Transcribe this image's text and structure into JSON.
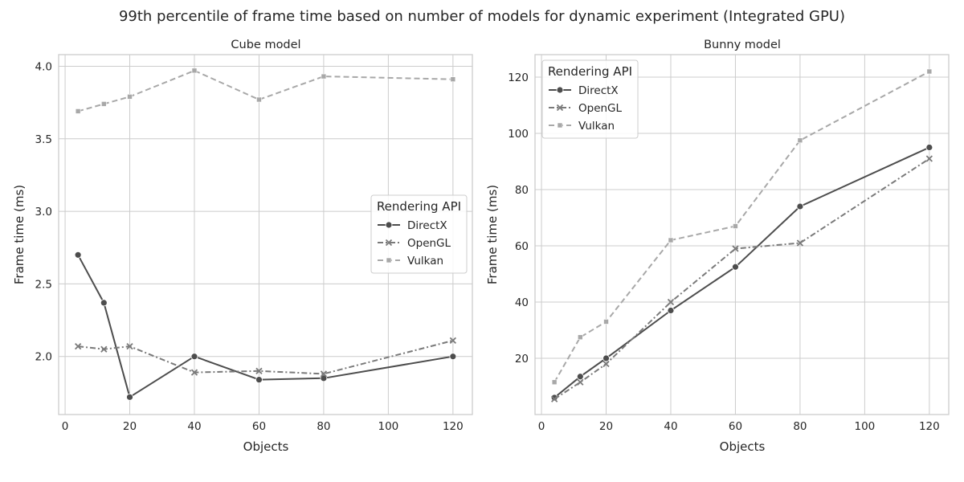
{
  "figure": {
    "suptitle": "99th percentile of frame time based on number of models for dynamic experiment (Integrated GPU)"
  },
  "colors": {
    "DirectX": "#4d4d4d",
    "OpenGL": "#7a7a7a",
    "Vulkan": "#a8a8a8",
    "grid": "#cccccc"
  },
  "chart_data": [
    {
      "type": "line",
      "title": "Cube model",
      "xlabel": "Objects",
      "ylabel": "Frame time (ms)",
      "xlim": [
        -2,
        126
      ],
      "ylim": [
        1.6,
        4.08
      ],
      "xticks": [
        0,
        20,
        40,
        60,
        80,
        100,
        120
      ],
      "xtick_labels": [
        "0",
        "20",
        "40",
        "60",
        "80",
        "100",
        "120"
      ],
      "yticks": [
        2.0,
        2.5,
        3.0,
        3.5,
        4.0
      ],
      "ytick_labels": [
        "2.0",
        "2.5",
        "3.0",
        "3.5",
        "4.0"
      ],
      "grid": true,
      "legend": {
        "title": "Rendering API",
        "placement": "center-right"
      },
      "series": [
        {
          "name": "DirectX",
          "marker": "circle",
          "dash": "solid",
          "x": [
            4,
            12,
            20,
            40,
            60,
            80,
            120
          ],
          "y": [
            2.7,
            2.37,
            1.72,
            2.0,
            1.84,
            1.85,
            2.0
          ]
        },
        {
          "name": "OpenGL",
          "marker": "x",
          "dash": "dashdot",
          "x": [
            4,
            12,
            20,
            40,
            60,
            80,
            120
          ],
          "y": [
            2.07,
            2.05,
            2.07,
            1.89,
            1.9,
            1.88,
            2.11
          ]
        },
        {
          "name": "Vulkan",
          "marker": "square",
          "dash": "dashed",
          "x": [
            4,
            12,
            20,
            40,
            60,
            80,
            120
          ],
          "y": [
            3.69,
            3.74,
            3.79,
            3.97,
            3.77,
            3.93,
            3.91
          ]
        }
      ]
    },
    {
      "type": "line",
      "title": "Bunny model",
      "xlabel": "Objects",
      "ylabel": "Frame time (ms)",
      "xlim": [
        -2,
        126
      ],
      "ylim": [
        0,
        128
      ],
      "xticks": [
        0,
        20,
        40,
        60,
        80,
        100,
        120
      ],
      "xtick_labels": [
        "0",
        "20",
        "40",
        "60",
        "80",
        "100",
        "120"
      ],
      "yticks": [
        20,
        40,
        60,
        80,
        100,
        120
      ],
      "ytick_labels": [
        "20",
        "40",
        "60",
        "80",
        "100",
        "120"
      ],
      "grid": true,
      "legend": {
        "title": "Rendering API",
        "placement": "top-left"
      },
      "series": [
        {
          "name": "DirectX",
          "marker": "circle",
          "dash": "solid",
          "x": [
            4,
            12,
            20,
            40,
            60,
            80,
            120
          ],
          "y": [
            6,
            13.5,
            20,
            37,
            52.5,
            74,
            95
          ]
        },
        {
          "name": "OpenGL",
          "marker": "x",
          "dash": "dashdot",
          "x": [
            4,
            12,
            20,
            40,
            60,
            80,
            120
          ],
          "y": [
            5.5,
            11.5,
            18,
            40,
            59,
            61,
            91
          ]
        },
        {
          "name": "Vulkan",
          "marker": "square",
          "dash": "dashed",
          "x": [
            4,
            12,
            20,
            40,
            60,
            80,
            120
          ],
          "y": [
            11.5,
            27.5,
            33,
            62,
            67,
            97.5,
            122
          ]
        }
      ]
    }
  ]
}
